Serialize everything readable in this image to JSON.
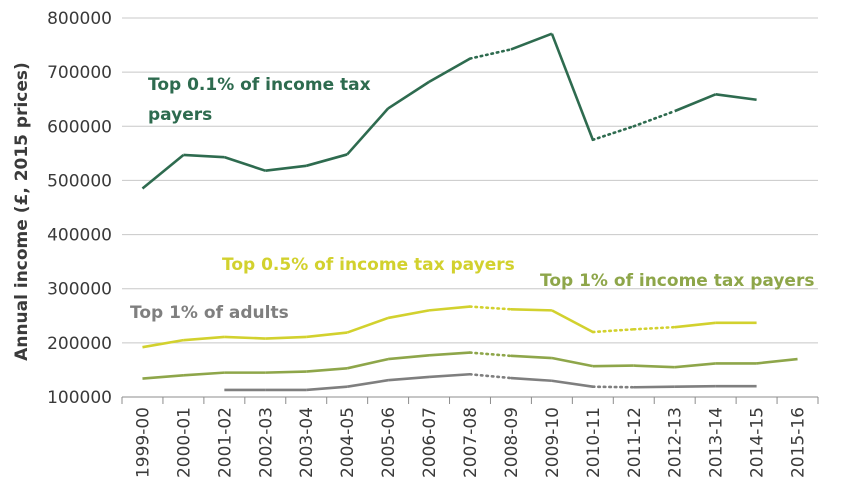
{
  "chart_data": {
    "type": "line",
    "title": "",
    "xlabel": "",
    "ylabel": "Annual income (£, 2015 prices)",
    "ylim": [
      100000,
      800000
    ],
    "yticks": [
      "100000",
      "200000",
      "300000",
      "400000",
      "500000",
      "600000",
      "700000",
      "800000"
    ],
    "categories": [
      "1999-00",
      "2000-01",
      "2001-02",
      "2002-03",
      "2003-04",
      "2004-05",
      "2005-06",
      "2006-07",
      "2007-08",
      "2008-09",
      "2009-10",
      "2010-11",
      "2011-12",
      "2012-13",
      "2013-14",
      "2014-15",
      "2015-16"
    ],
    "grid": "horizontal",
    "series": [
      {
        "name": "Top 0.1% of income tax payers",
        "name_lines": [
          "Top 0.1% of income tax",
          "payers"
        ],
        "color": "#2e6b4f",
        "values": [
          485000,
          547000,
          543000,
          518000,
          527000,
          548000,
          633000,
          682000,
          725000,
          742000,
          771000,
          575000,
          600000,
          628000,
          659000,
          649000,
          null
        ],
        "dotted_segments": [
          [
            8,
            9
          ],
          [
            11,
            12
          ],
          [
            12,
            13
          ]
        ]
      },
      {
        "name": "Top 0.5% of income tax payers",
        "name_lines": [
          "Top 0.5% of income tax payers"
        ],
        "color": "#d2d12e",
        "values": [
          192000,
          205000,
          211000,
          208000,
          211000,
          219000,
          246000,
          260000,
          267000,
          262000,
          260000,
          220000,
          225000,
          229000,
          237000,
          237000,
          null
        ],
        "dotted_segments": [
          [
            8,
            9
          ],
          [
            11,
            12
          ],
          [
            12,
            13
          ]
        ]
      },
      {
        "name": "Top 1% of income tax payers",
        "name_lines": [
          "Top 1% of income tax payers"
        ],
        "color": "#8ea64a",
        "values": [
          134000,
          140000,
          145000,
          145000,
          147000,
          153000,
          170000,
          177000,
          182000,
          176000,
          172000,
          157000,
          158000,
          155000,
          162000,
          162000,
          170000
        ],
        "dotted_segments": [
          [
            8,
            9
          ]
        ]
      },
      {
        "name": "Top 1% of adults",
        "name_lines": [
          "Top 1% of adults"
        ],
        "color": "#7f7f7f",
        "values": [
          null,
          null,
          113000,
          113000,
          113000,
          119000,
          131000,
          137000,
          142000,
          135000,
          130000,
          119000,
          118000,
          119000,
          120000,
          120000,
          null
        ],
        "dotted_segments": [
          [
            8,
            9
          ],
          [
            11,
            12
          ]
        ]
      }
    ]
  }
}
